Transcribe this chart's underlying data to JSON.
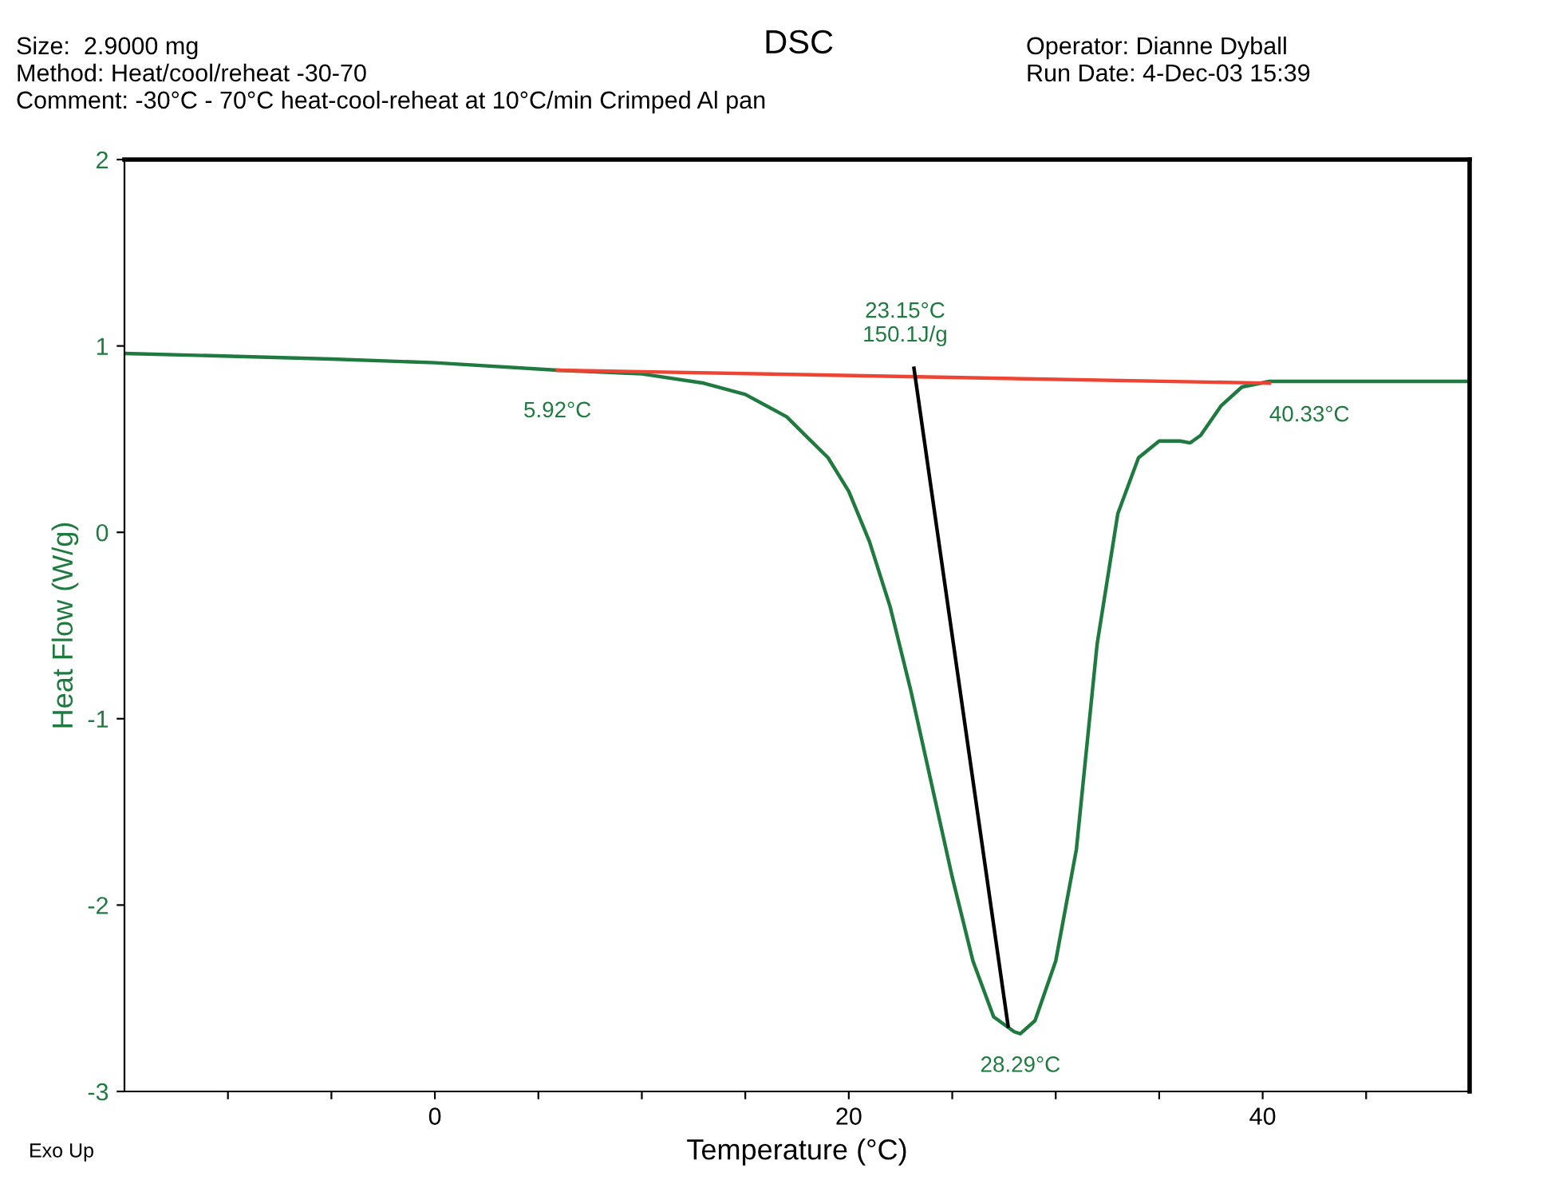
{
  "chart_data": {
    "type": "line",
    "title": "DSC",
    "xlabel": "Temperature (°C)",
    "ylabel": "Heat Flow (W/g)",
    "xlim": [
      -15,
      50
    ],
    "ylim": [
      -3,
      2
    ],
    "xticks": [
      {
        "value": -10,
        "label": null
      },
      {
        "value": -5,
        "label": null
      },
      0,
      {
        "value": 5,
        "label": null
      },
      {
        "value": 10,
        "label": null
      },
      {
        "value": 15,
        "label": null
      },
      20,
      {
        "value": 25,
        "label": null
      },
      {
        "value": 30,
        "label": null
      },
      {
        "value": 35,
        "label": null
      },
      40,
      {
        "value": 45,
        "label": null
      }
    ],
    "yticks": [
      -3,
      -2,
      -1,
      0,
      1,
      2
    ],
    "grid": false,
    "series": [
      {
        "color": "#1f7a3f",
        "x": [
          -15,
          -5,
          0,
          5.92,
          10,
          13,
          15,
          17,
          19,
          20,
          21,
          22,
          23,
          24,
          25,
          26,
          27,
          28,
          28.29,
          29,
          30,
          31,
          32,
          33,
          34,
          35,
          36,
          36.5,
          37,
          38,
          39,
          40.33,
          45,
          50
        ],
        "values": [
          0.96,
          0.93,
          0.91,
          0.87,
          0.85,
          0.8,
          0.74,
          0.62,
          0.4,
          0.22,
          -0.05,
          -0.4,
          -0.85,
          -1.35,
          -1.85,
          -2.3,
          -2.6,
          -2.68,
          -2.69,
          -2.62,
          -2.3,
          -1.7,
          -0.6,
          0.1,
          0.4,
          0.49,
          0.49,
          0.48,
          0.52,
          0.68,
          0.78,
          0.81,
          0.81,
          0.81
        ]
      },
      {
        "color": "#ee4433",
        "x": [
          5.92,
          40.33
        ],
        "values": [
          0.87,
          0.8
        ]
      },
      {
        "color": "#000000",
        "x": [
          23.15,
          27.7
        ],
        "values": [
          0.88,
          -2.65
        ]
      }
    ],
    "annotations": [
      "Size:  2.9000 mg",
      "Method: Heat/cool/reheat -30-70",
      "Comment: -30°C - 70°C heat-cool-reheat at 10°C/min Crimped Al pan",
      "Operator: Dianne Dyball",
      "Run Date: 4-Dec-03 15:39",
      "Exo Up",
      {
        "text": "5.92°C",
        "x": 5.92,
        "y": 0.87
      },
      {
        "text": "23.15°C\n150.1J/g",
        "x": 23.15,
        "y": 0.88
      },
      {
        "text": "28.29°C",
        "x": 28.29,
        "y": -2.69
      },
      {
        "text": "40.33°C",
        "x": 40.33,
        "y": 0.8
      }
    ]
  }
}
